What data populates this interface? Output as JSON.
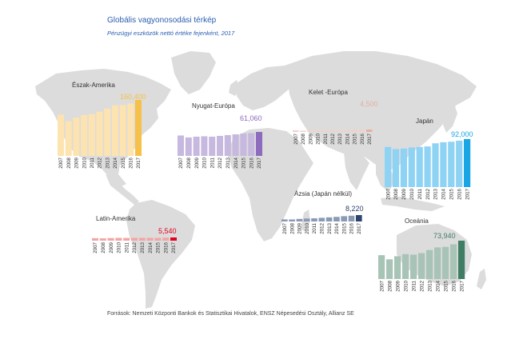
{
  "header": {
    "title": "Globális vagyonosodási térkép",
    "subtitle": "Pénzügyi eszközök nettó értéke fejenként, 2017"
  },
  "footer": {
    "source": "Források: Nemzeti Központi Bankok és Statisztikai Hivatalok, ENSZ Népesedési Osztály, Allianz SE"
  },
  "colors": {
    "map": "#dcdcdc",
    "year_text": "#333333"
  },
  "chart_data": [
    {
      "type": "bar",
      "region": "Észak-Amerika",
      "categories": [
        "2007",
        "2008",
        "2009",
        "2010",
        "2011",
        "2012",
        "2013",
        "2014",
        "2015",
        "2016",
        "2017"
      ],
      "values": [
        118000,
        100000,
        110000,
        117000,
        120000,
        127000,
        136000,
        145000,
        146000,
        150000,
        160400
      ],
      "value_label": "160,400",
      "color_light": "#fde3b0",
      "color_dark": "#f7c048"
    },
    {
      "type": "bar",
      "region": "Nyugat-Európa",
      "categories": [
        "2007",
        "2008",
        "2009",
        "2010",
        "2011",
        "2012",
        "2013",
        "2014",
        "2015",
        "2016",
        "2017"
      ],
      "values": [
        52000,
        47000,
        49000,
        50000,
        49000,
        51000,
        53000,
        55000,
        57000,
        58000,
        61060
      ],
      "value_label": "61,060",
      "color_light": "#c7b8df",
      "color_dark": "#8d6bbd"
    },
    {
      "type": "bar",
      "region": "Kelet -Európa",
      "categories": [
        "2007",
        "2008",
        "2009",
        "2010",
        "2011",
        "2012",
        "2013",
        "2014",
        "2015",
        "2016",
        "2017"
      ],
      "values": [
        2900,
        2300,
        2600,
        2900,
        2900,
        3100,
        3400,
        3600,
        3800,
        4100,
        4500
      ],
      "value_label": "4,500",
      "color_light": "#f0d2c8",
      "color_dark": "#e5b0a0"
    },
    {
      "type": "bar",
      "region": "Japán",
      "categories": [
        "2007",
        "2008",
        "2009",
        "2010",
        "2011",
        "2012",
        "2013",
        "2014",
        "2015",
        "2016",
        "2017"
      ],
      "values": [
        77000,
        73000,
        74000,
        76000,
        77000,
        78000,
        84000,
        86000,
        87000,
        89000,
        92000
      ],
      "value_label": "92,000",
      "color_light": "#8fd3f4",
      "color_dark": "#1aa6e4"
    },
    {
      "type": "bar",
      "region": "Ázsia (Japán nélkül)",
      "categories": [
        "2007",
        "2008",
        "2009",
        "2010",
        "2011",
        "2012",
        "2013",
        "2014",
        "2015",
        "2016",
        "2017"
      ],
      "values": [
        2700,
        2600,
        3300,
        3800,
        4100,
        4700,
        5300,
        5900,
        6800,
        7400,
        8220
      ],
      "value_label": "8,220",
      "color_light": "#8a9ab5",
      "color_dark": "#2d4470"
    },
    {
      "type": "bar",
      "region": "Latin-Amerika",
      "categories": [
        "2007",
        "2008",
        "2009",
        "2010",
        "2011",
        "2012",
        "2013",
        "2014",
        "2015",
        "2016",
        "2017"
      ],
      "values": [
        4300,
        4000,
        4500,
        4800,
        4700,
        4900,
        4800,
        4900,
        4900,
        5300,
        5540
      ],
      "value_label": "5,540",
      "color_light": "#f4a4a4",
      "color_dark": "#e4001f"
    },
    {
      "type": "bar",
      "region": "Oceánia",
      "categories": [
        "2007",
        "2008",
        "2009",
        "2010",
        "2011",
        "2012",
        "2013",
        "2014",
        "2015",
        "2016",
        "2017"
      ],
      "values": [
        46000,
        38000,
        44000,
        48000,
        47000,
        50000,
        56000,
        61000,
        62000,
        67000,
        73940
      ],
      "value_label": "73,940",
      "color_light": "#a8c4b7",
      "color_dark": "#3f7d64"
    }
  ]
}
